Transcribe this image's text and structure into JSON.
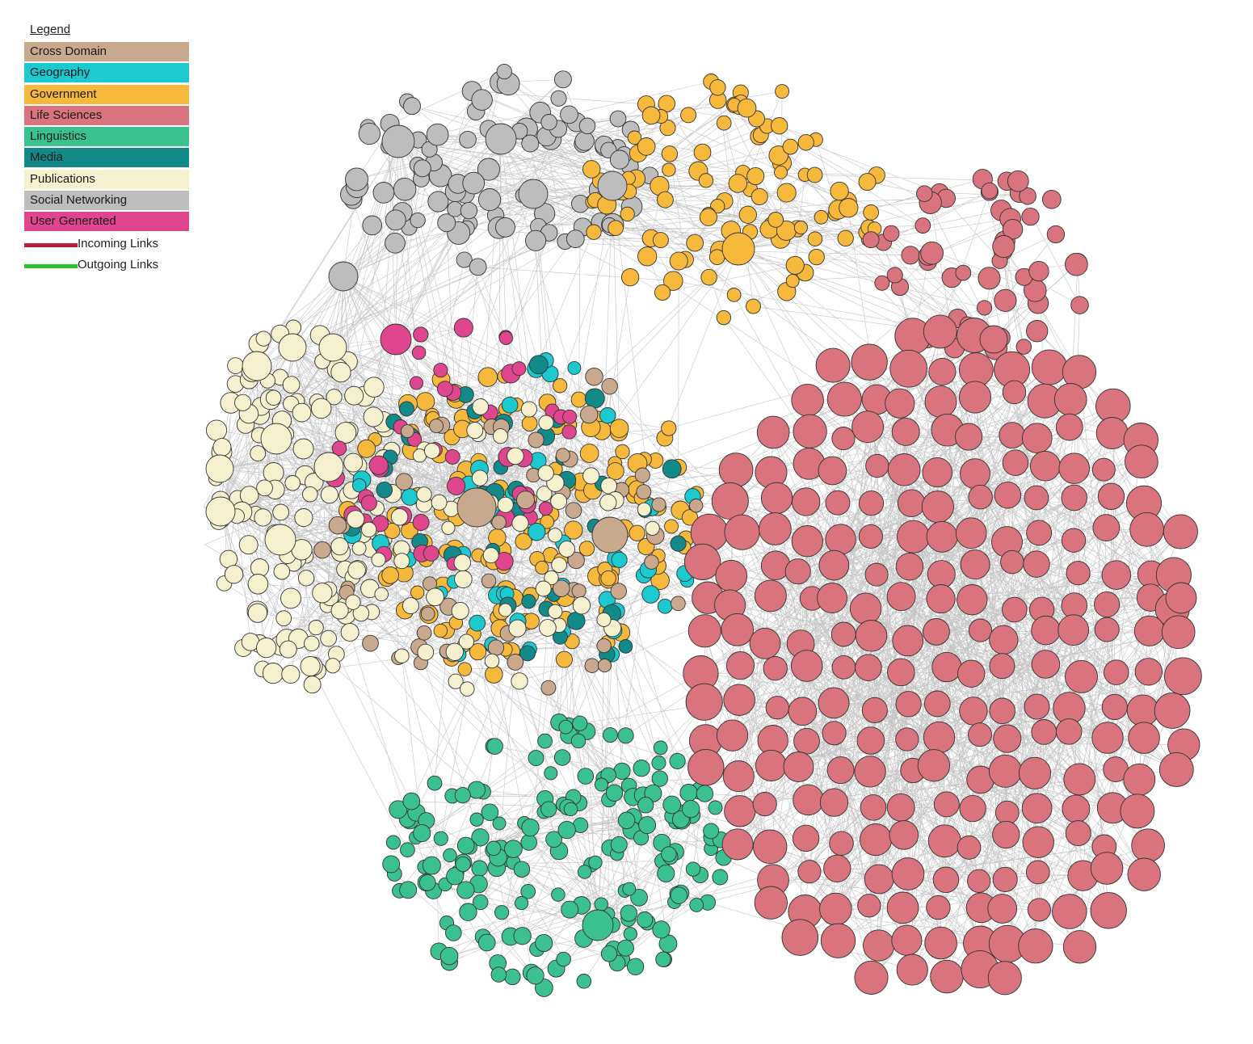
{
  "legend": {
    "title": "Legend",
    "categories": [
      {
        "label": "Cross Domain",
        "color": "#c9a98d"
      },
      {
        "label": "Geography",
        "color": "#1bc9cf"
      },
      {
        "label": "Government",
        "color": "#f6b93b"
      },
      {
        "label": "Life Sciences",
        "color": "#d9747e"
      },
      {
        "label": "Linguistics",
        "color": "#3bc190"
      },
      {
        "label": "Media",
        "color": "#138a8a"
      },
      {
        "label": "Publications",
        "color": "#f5f1cf"
      },
      {
        "label": "Social Networking",
        "color": "#bdbdbd"
      },
      {
        "label": "User Generated",
        "color": "#e0468e"
      }
    ],
    "links": [
      {
        "label": "Incoming Links",
        "color": "#b21f3f"
      },
      {
        "label": "Outgoing Links",
        "color": "#2cc02c"
      }
    ]
  }
}
